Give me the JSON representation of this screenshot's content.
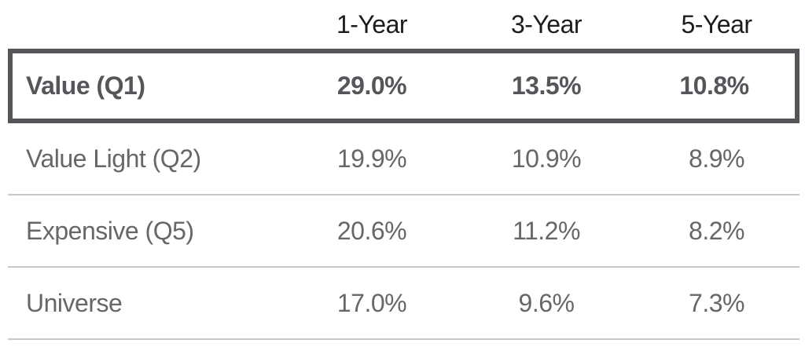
{
  "chart_data": {
    "type": "table",
    "columns": [
      "1-Year",
      "3-Year",
      "5-Year"
    ],
    "rows": [
      {
        "label": "Value (Q1)",
        "values": [
          "29.0%",
          "13.5%",
          "10.8%"
        ],
        "highlighted": true
      },
      {
        "label": "Value Light (Q2)",
        "values": [
          "19.9%",
          "10.9%",
          "8.9%"
        ],
        "highlighted": false
      },
      {
        "label": "Expensive (Q5)",
        "values": [
          "20.6%",
          "11.2%",
          "8.2%"
        ],
        "highlighted": false
      },
      {
        "label": "Universe",
        "values": [
          "17.0%",
          "9.6%",
          "7.3%"
        ],
        "highlighted": false
      }
    ],
    "layout": {
      "value_alignment": "center",
      "row_dividers": true,
      "highlighted_row_index": 0
    }
  },
  "colors": {
    "highlight_border": "#55565a",
    "header_text": "#1c1c1e",
    "highlight_text": "#55565a",
    "body_text": "#66676a",
    "divider": "#c9c7c5",
    "background": "#ffffff"
  }
}
